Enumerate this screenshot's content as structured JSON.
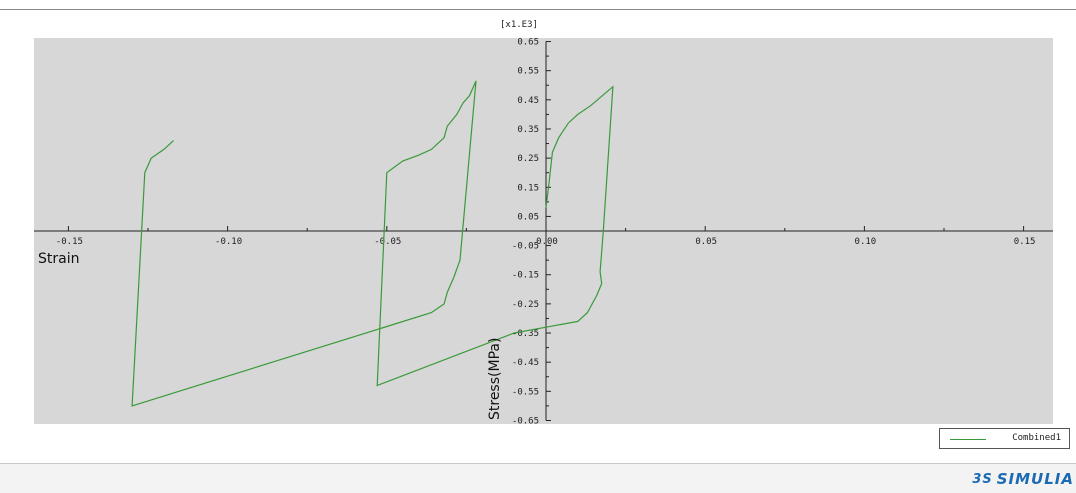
{
  "chart_data": {
    "type": "line",
    "scale_label": "[x1.E3]",
    "xlabel": "Strain",
    "ylabel": "Stress(MPa)",
    "xlim": [
      -0.16,
      0.16
    ],
    "ylim": [
      -0.65,
      0.65
    ],
    "x_ticks": [
      -0.15,
      -0.1,
      -0.05,
      0.0,
      0.05,
      0.1,
      0.15
    ],
    "x_tick_labels": [
      "-0.15",
      "-0.10",
      "-0.05",
      "0.00",
      "0.05",
      "0.10",
      "0.15"
    ],
    "y_ticks": [
      0.65,
      0.55,
      0.45,
      0.35,
      0.25,
      0.15,
      0.05,
      -0.05,
      -0.15,
      -0.25,
      -0.35,
      -0.45,
      -0.55,
      -0.65
    ],
    "y_tick_labels": [
      "0.65",
      "0.55",
      "0.45",
      "0.35",
      "0.25",
      "0.15",
      "0.05",
      "-0.05",
      "-0.15",
      "-0.25",
      "-0.35",
      "-0.45",
      "-0.55",
      "-0.65"
    ],
    "series": [
      {
        "name": "Combined1",
        "color": "#3a9a3a",
        "points": [
          [
            0.0,
            0.08
          ],
          [
            0.001,
            0.17
          ],
          [
            0.002,
            0.27
          ],
          [
            0.004,
            0.32
          ],
          [
            0.007,
            0.37
          ],
          [
            0.01,
            0.4
          ],
          [
            0.014,
            0.43
          ],
          [
            0.021,
            0.495
          ],
          [
            0.018,
            0.0
          ],
          [
            0.017,
            -0.14
          ],
          [
            0.0175,
            -0.18
          ],
          [
            0.016,
            -0.22
          ],
          [
            0.013,
            -0.28
          ],
          [
            0.01,
            -0.31
          ],
          [
            0.0,
            -0.33
          ],
          [
            -0.01,
            -0.35
          ],
          [
            -0.053,
            -0.53
          ],
          [
            -0.05,
            0.2
          ],
          [
            -0.045,
            0.24
          ],
          [
            -0.04,
            0.26
          ],
          [
            -0.036,
            0.28
          ],
          [
            -0.032,
            0.32
          ],
          [
            -0.031,
            0.36
          ],
          [
            -0.028,
            0.4
          ],
          [
            -0.026,
            0.44
          ],
          [
            -0.024,
            0.465
          ],
          [
            -0.022,
            0.515
          ],
          [
            -0.027,
            -0.1
          ],
          [
            -0.029,
            -0.16
          ],
          [
            -0.031,
            -0.21
          ],
          [
            -0.032,
            -0.25
          ],
          [
            -0.036,
            -0.28
          ],
          [
            -0.13,
            -0.6
          ],
          [
            -0.126,
            0.2
          ],
          [
            -0.124,
            0.25
          ],
          [
            -0.12,
            0.28
          ],
          [
            -0.117,
            0.31
          ]
        ]
      }
    ],
    "legend_position": "bottom-right",
    "background_color": "#d7d7d7",
    "grid": false
  },
  "footer": {
    "brand_text": "SIMULIA",
    "brand_icon": "3ds-logo-icon"
  }
}
